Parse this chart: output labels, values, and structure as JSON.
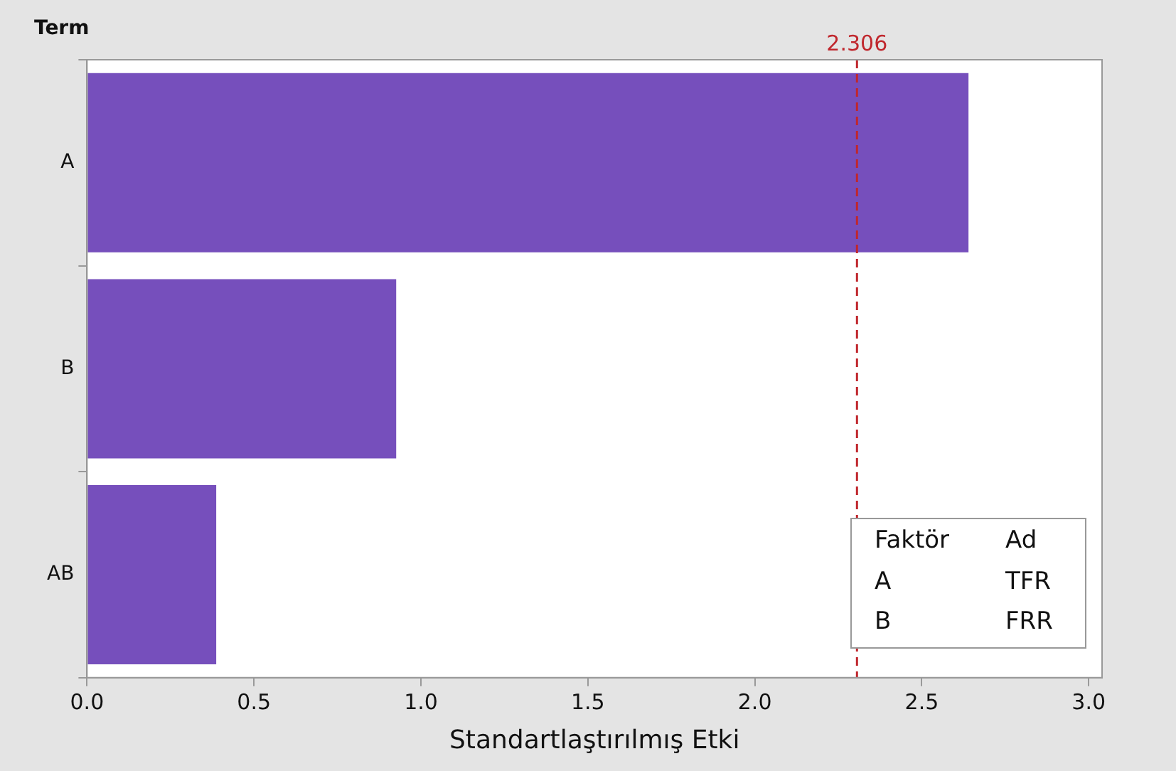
{
  "chart_data": {
    "type": "bar",
    "orientation": "horizontal",
    "xlabel": "Standartlaştırılmış Etki",
    "ylabel": "Term",
    "categories": [
      "A",
      "B",
      "AB"
    ],
    "values": [
      2.64,
      0.926,
      0.387
    ],
    "color": "#764fbc",
    "xlim": [
      0,
      3.04
    ],
    "xticks": [
      {
        "value": 0,
        "label": "0.0"
      },
      {
        "value": 0.5,
        "label": "0.5"
      },
      {
        "value": 1,
        "label": "1.0"
      },
      {
        "value": 1.5,
        "label": "1.5"
      },
      {
        "value": 2,
        "label": "2.0"
      },
      {
        "value": 2.5,
        "label": "2.5"
      },
      {
        "value": 3,
        "label": "3.0"
      }
    ],
    "ref_lines": [
      {
        "axis": "x",
        "value": 2.306,
        "label": "2.306",
        "color": "#c0272d",
        "line_style": "dashed"
      }
    ],
    "annotations": [
      "Faktör",
      "Ad",
      "A",
      "TFR",
      "B",
      "FRR"
    ],
    "grid": false,
    "legend": false
  }
}
